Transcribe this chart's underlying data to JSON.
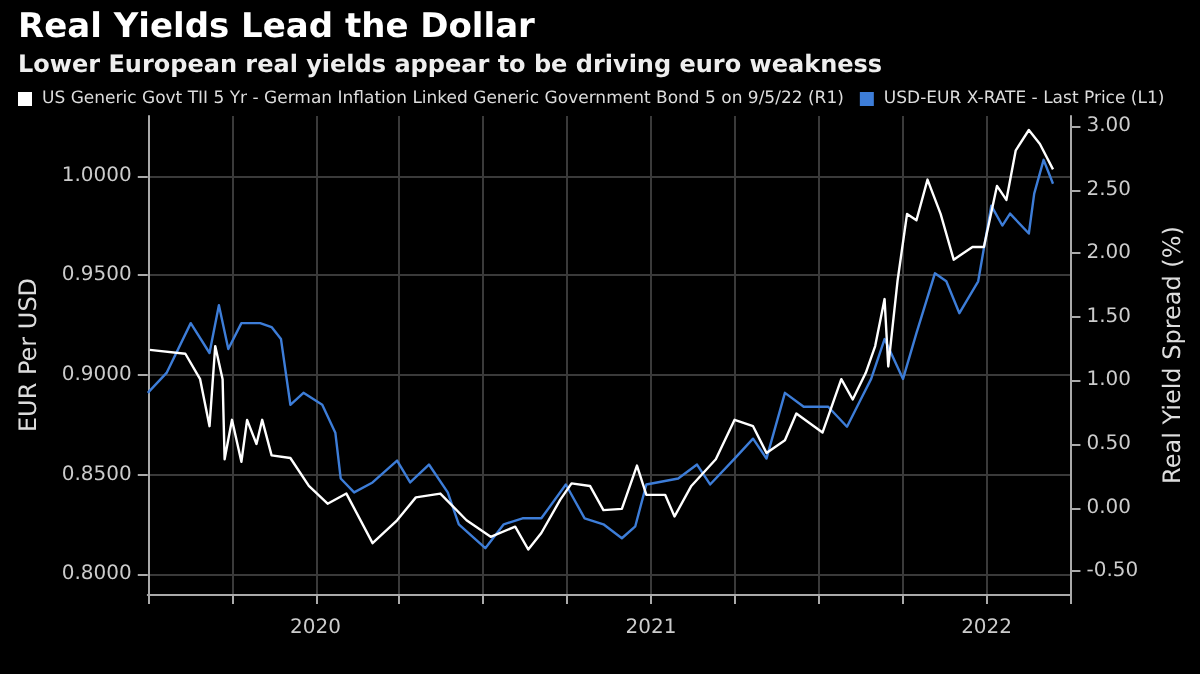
{
  "chart_data": {
    "type": "line",
    "title": "Real Yields Lead the Dollar",
    "subtitle": "Lower European real yields appear to be driving euro weakness",
    "ylabel": "EUR Per USD",
    "y2label": "Real Yield Spread (%)",
    "xlim": [
      2020,
      2022.75
    ],
    "xticks": [
      {
        "value": 2020,
        "label": null
      },
      {
        "value": 2020.25,
        "label": null
      },
      {
        "value": 2020.5,
        "label": "2020"
      },
      {
        "value": 2020.75,
        "label": null
      },
      {
        "value": 2021,
        "label": null
      },
      {
        "value": 2021.25,
        "label": null
      },
      {
        "value": 2021.5,
        "label": "2021"
      },
      {
        "value": 2021.75,
        "label": null
      },
      {
        "value": 2022,
        "label": null
      },
      {
        "value": 2022.25,
        "label": null
      },
      {
        "value": 2022.5,
        "label": "2022"
      },
      {
        "value": 2022.75,
        "label": null
      }
    ],
    "ylim": [
      0.79,
      1.03
    ],
    "yticks": [
      {
        "value": 0.8,
        "label": "0.8000"
      },
      {
        "value": 0.85,
        "label": "0.8500"
      },
      {
        "value": 0.9,
        "label": "0.9000"
      },
      {
        "value": 0.95,
        "label": "0.9500"
      },
      {
        "value": 1.0,
        "label": "1.0000"
      }
    ],
    "y2lim": [
      -0.68,
      3.08
    ],
    "y2ticks": [
      {
        "value": -0.5,
        "label": "-0.50"
      },
      {
        "value": 0,
        "label": "0.00"
      },
      {
        "value": 0.5,
        "label": "0.50"
      },
      {
        "value": 1,
        "label": "1.00"
      },
      {
        "value": 1.5,
        "label": "1.50"
      },
      {
        "value": 2,
        "label": "2.00"
      },
      {
        "value": 2.5,
        "label": "2.50"
      },
      {
        "value": 3,
        "label": "3.00"
      }
    ],
    "grid": true,
    "legend": "top",
    "marker": "none",
    "line_style": "solid",
    "series": [
      {
        "name": "US Generic Govt TII 5 Yr - German Inflation Linked Generic Government Bond 5 on 9/5/22 (R1)",
        "color": "#ffffff",
        "axis": "y2",
        "x": [
          2020.006,
          2020.112,
          2020.156,
          2020.184,
          2020.201,
          2020.223,
          2020.229,
          2020.251,
          2020.279,
          2020.296,
          2020.324,
          2020.341,
          2020.369,
          2020.425,
          2020.48,
          2020.536,
          2020.592,
          2020.67,
          2020.743,
          2020.799,
          2020.872,
          2020.95,
          2021.022,
          2021.095,
          2021.134,
          2021.173,
          2021.229,
          2021.263,
          2021.318,
          2021.358,
          2021.413,
          2021.458,
          2021.486,
          2021.542,
          2021.57,
          2021.62,
          2021.693,
          2021.749,
          2021.804,
          2021.844,
          2021.899,
          2021.933,
          2022.011,
          2022.067,
          2022.101,
          2022.14,
          2022.168,
          2022.196,
          2022.207,
          2022.235,
          2022.263,
          2022.291,
          2022.324,
          2022.363,
          2022.402,
          2022.458,
          2022.492,
          2022.531,
          2022.559,
          2022.587,
          2022.626,
          2022.659,
          2022.698
        ],
        "values": [
          1.24,
          1.21,
          1.01,
          0.64,
          1.27,
          1.01,
          0.38,
          0.69,
          0.36,
          0.69,
          0.5,
          0.69,
          0.41,
          0.39,
          0.17,
          0.03,
          0.11,
          -0.28,
          -0.1,
          0.08,
          0.11,
          -0.1,
          -0.23,
          -0.15,
          -0.33,
          -0.2,
          0.06,
          0.19,
          0.17,
          -0.02,
          -0.01,
          0.33,
          0.1,
          0.1,
          -0.07,
          0.17,
          0.38,
          0.69,
          0.64,
          0.43,
          0.53,
          0.74,
          0.59,
          1.01,
          0.85,
          1.06,
          1.27,
          1.64,
          1.11,
          1.79,
          2.31,
          2.26,
          2.58,
          2.31,
          1.95,
          2.05,
          2.05,
          2.53,
          2.42,
          2.81,
          2.97,
          2.86,
          2.66
        ]
      },
      {
        "name": "USD-EUR X-RATE - Last Price (L1)",
        "color": "#3d7dd8",
        "x": [
          2020.0,
          2020.056,
          2020.128,
          2020.184,
          2020.212,
          2020.24,
          2020.279,
          2020.335,
          2020.369,
          2020.397,
          2020.425,
          2020.464,
          2020.52,
          2020.559,
          2020.575,
          2020.615,
          2020.67,
          2020.743,
          2020.782,
          2020.838,
          2020.894,
          2020.927,
          2021.006,
          2021.061,
          2021.117,
          2021.173,
          2021.246,
          2021.302,
          2021.358,
          2021.413,
          2021.453,
          2021.486,
          2021.581,
          2021.637,
          2021.676,
          2021.749,
          2021.804,
          2021.844,
          2021.899,
          2021.955,
          2022.028,
          2022.084,
          2022.123,
          2022.156,
          2022.196,
          2022.251,
          2022.291,
          2022.346,
          2022.38,
          2022.419,
          2022.475,
          2022.514,
          2022.547,
          2022.57,
          2022.626,
          2022.642,
          2022.67,
          2022.698
        ],
        "values": [
          0.891,
          0.901,
          0.926,
          0.911,
          0.935,
          0.913,
          0.926,
          0.926,
          0.924,
          0.918,
          0.885,
          0.891,
          0.885,
          0.871,
          0.848,
          0.841,
          0.846,
          0.857,
          0.846,
          0.855,
          0.841,
          0.825,
          0.813,
          0.825,
          0.828,
          0.828,
          0.845,
          0.828,
          0.825,
          0.818,
          0.824,
          0.845,
          0.848,
          0.855,
          0.845,
          0.858,
          0.868,
          0.858,
          0.891,
          0.884,
          0.884,
          0.874,
          0.887,
          0.898,
          0.918,
          0.898,
          0.921,
          0.951,
          0.947,
          0.931,
          0.947,
          0.985,
          0.975,
          0.981,
          0.971,
          0.991,
          1.008,
          0.996
        ]
      }
    ]
  }
}
